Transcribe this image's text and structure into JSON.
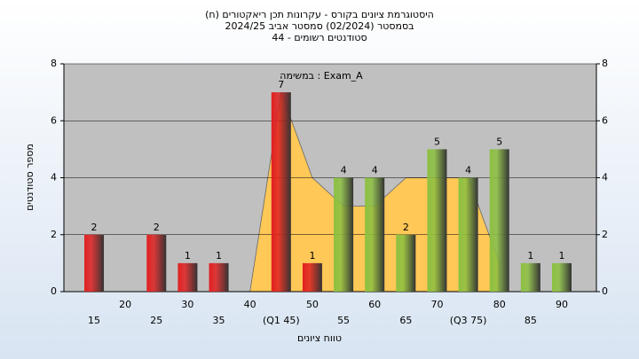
{
  "chart_data": {
    "type": "bar",
    "title": "(היסטוגרמת ציונים בקורס - עקרונות תכן ריאקטורים (ח",
    "subtitle": "בסמסטר  (02/2024)  סמסטר אביב 2024/25",
    "subtitle2": "סטודנטים רשומים - 44",
    "annotation": "במשימה : Exam_A",
    "x_label": "טווח ציונים",
    "y_label": "מספר סטודנטים",
    "categories": [
      "15",
      "20",
      "25",
      "30",
      "35",
      "40",
      "(Q1 45)",
      "50",
      "55",
      "60",
      "65",
      "70",
      "(Q3 75)",
      "80",
      "85",
      "90"
    ],
    "values": [
      2,
      0,
      2,
      1,
      1,
      0,
      7,
      1,
      4,
      4,
      2,
      5,
      4,
      5,
      1,
      1
    ],
    "colors": [
      "#e02020",
      "#e02020",
      "#e02020",
      "#e02020",
      "#e02020",
      "#e02020",
      "#e02020",
      "#e02020",
      "#8cc040",
      "#8cc040",
      "#8cc040",
      "#8cc040",
      "#8cc040",
      "#8cc040",
      "#8cc040",
      "#8cc040"
    ],
    "area": {
      "color": "#ffc857",
      "values": [
        null,
        null,
        null,
        null,
        null,
        0,
        7,
        4,
        3,
        3,
        4,
        4,
        4,
        1,
        null,
        null
      ]
    },
    "ylim": [
      0,
      8
    ],
    "yticks": [
      0,
      2,
      4,
      6,
      8
    ],
    "grid": true
  }
}
